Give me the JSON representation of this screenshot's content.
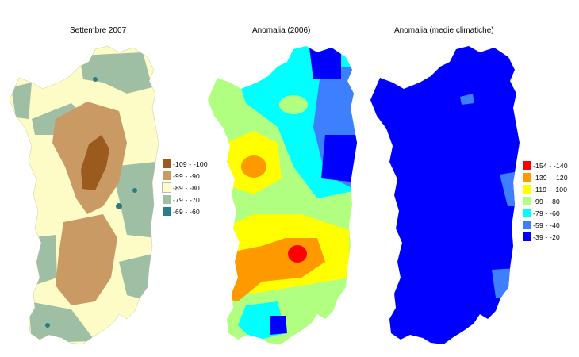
{
  "panels": [
    {
      "title": "Settembre 2007",
      "legend": [
        {
          "label": "-109 - -100",
          "color": "#9b5a1e"
        },
        {
          "label": "-99 - -90",
          "color": "#c99a63"
        },
        {
          "label": "-89 - -80",
          "color": "#fdfcc7"
        },
        {
          "label": "-79 - -70",
          "color": "#9ebfa4"
        },
        {
          "label": "-69 - -60",
          "color": "#2a7d86"
        }
      ]
    },
    {
      "title": "Anomalia (2006)",
      "legend": []
    },
    {
      "title": "Anomalia (medie climatiche)",
      "legend": [
        {
          "label": "-154 - -140",
          "color": "#ff0000"
        },
        {
          "label": "-139 - -120",
          "color": "#ff9900"
        },
        {
          "label": "-119 - -100",
          "color": "#ffff00"
        },
        {
          "label": "-99 - -80",
          "color": "#b0ff80"
        },
        {
          "label": "-79 - -60",
          "color": "#00ffff"
        },
        {
          "label": "-59 - -40",
          "color": "#3d7fff"
        },
        {
          "label": "-39 - -20",
          "color": "#0000ff"
        }
      ]
    }
  ]
}
